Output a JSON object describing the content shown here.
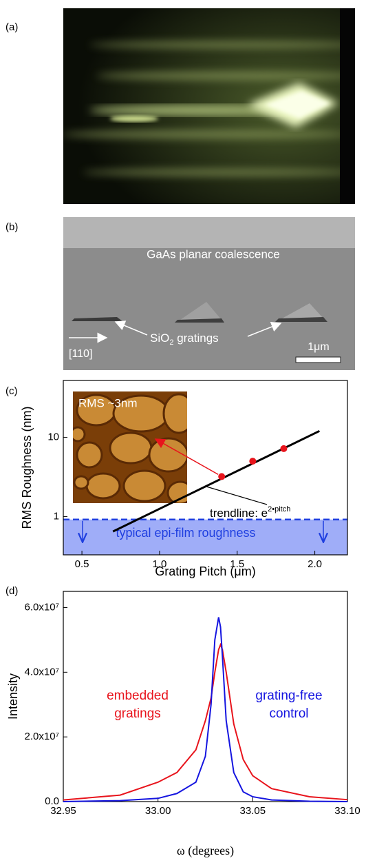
{
  "panels": {
    "a": "(a)",
    "b": "(b)",
    "c": "(c)",
    "d": "(d)"
  },
  "sem": {
    "title": "GaAs planar coalescence",
    "gratings": {
      "main": "SiO",
      "sub": "2",
      "rest": " gratings"
    },
    "direction": "[110]",
    "scale": "1μm"
  },
  "chart_data": [
    {
      "type": "scatter",
      "x_label": "Grating Pitch (μm)",
      "y_label": "RMS Roughness (nm)",
      "xlim": [
        0.38,
        2.21
      ],
      "ylim": [
        0.33,
        52
      ],
      "log_y": true,
      "xticks": [
        0.5,
        {
          "value": 1.0,
          "label": "1.0"
        },
        1.5,
        {
          "value": 2.0,
          "label": "2.0"
        }
      ],
      "yticks": [
        1,
        10
      ],
      "x": [
        1.4,
        1.6,
        1.8
      ],
      "values": [
        3.2,
        5.0,
        7.2
      ],
      "color": "#e8141c",
      "trendline": {
        "x": [
          0.7,
          2.03
        ],
        "values": [
          0.65,
          12
        ],
        "color": "#000000",
        "label": "trendline: e",
        "label_sup": "2•pitch"
      },
      "threshold": {
        "value": 0.92,
        "color": "#1f3fe0",
        "label": "typical epi-film roughness"
      },
      "inset_label": "RMS ~3nm"
    },
    {
      "type": "line",
      "x_label": "ω (degrees)",
      "y_label": "Intensity",
      "xlim": [
        32.95,
        33.1
      ],
      "ylim": [
        0,
        65000000
      ],
      "xticks": [
        32.95,
        {
          "value": 33.0,
          "label": "33.00"
        },
        33.05,
        {
          "value": 33.1,
          "label": "33.10"
        }
      ],
      "yticks": [
        {
          "value": 0,
          "label": "0.0"
        },
        {
          "value": 20000000,
          "label": "2.0x10⁷"
        },
        {
          "value": 40000000,
          "label": "4.0x10⁷"
        },
        {
          "value": 60000000,
          "label": "6.0x10⁷"
        }
      ],
      "x": [
        32.95,
        32.98,
        33.0,
        33.01,
        33.02,
        33.025,
        33.028,
        33.03,
        33.032,
        33.033,
        33.034,
        33.036,
        33.04,
        33.045,
        33.05,
        33.06,
        33.08,
        33.1
      ],
      "series": [
        {
          "color": "#e8141c",
          "values": [
            500000,
            2000000,
            6000000,
            9000000,
            16000000,
            25000000,
            32000000,
            40000000,
            47000000,
            48500000,
            47000000,
            40000000,
            24000000,
            13000000,
            8000000,
            4000000,
            1500000,
            600000
          ]
        },
        {
          "color": "#1515e0",
          "values": [
            0,
            300000,
            1000000,
            2500000,
            6000000,
            14000000,
            30000000,
            50000000,
            57000000,
            54000000,
            45000000,
            25000000,
            9000000,
            3000000,
            1500000,
            500000,
            100000,
            0
          ]
        }
      ],
      "annotations": [
        {
          "lines": [
            "embedded",
            "gratings"
          ],
          "color": "#e8141c"
        },
        {
          "lines": [
            "grating-free",
            "control"
          ],
          "color": "#1515e0"
        }
      ]
    }
  ]
}
